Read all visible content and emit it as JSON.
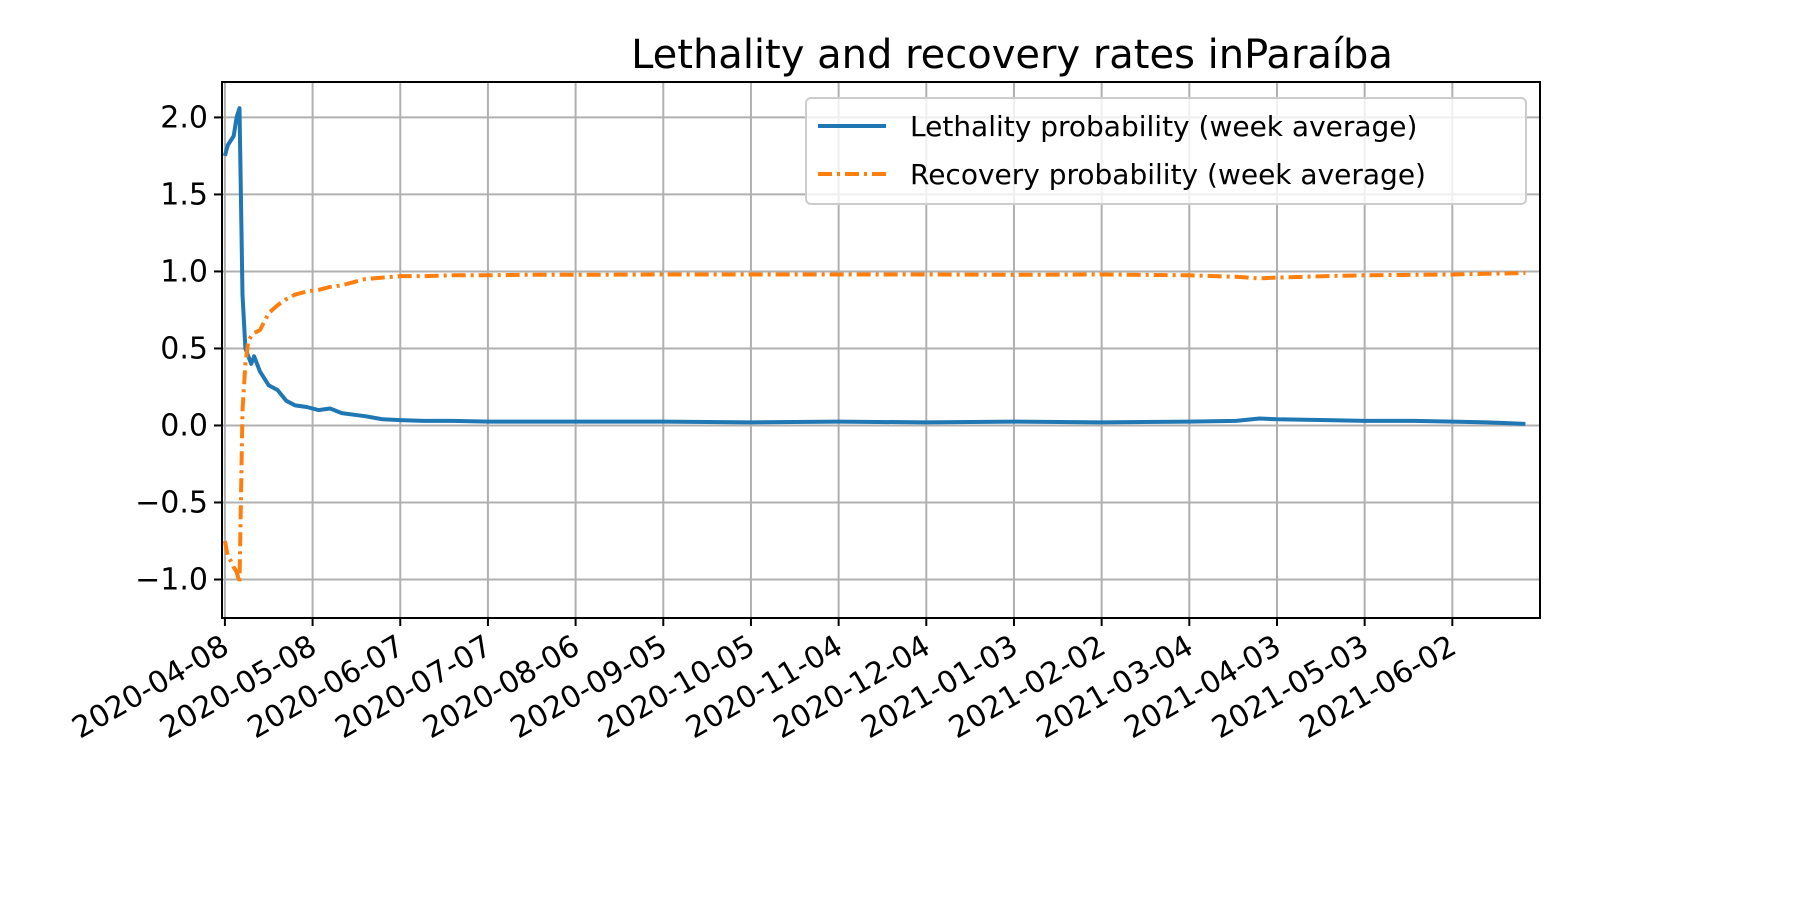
{
  "chart_data": {
    "type": "line",
    "title": "Lethality and recovery rates inParaíba",
    "xlabel": "",
    "ylabel": "",
    "ylim": [
      -1.25,
      2.23
    ],
    "xlim": [
      "2020-04-07",
      "2021-07-02"
    ],
    "grid": true,
    "legend_position": "top-right",
    "x_tick_labels": [
      "2020-04-08",
      "2020-05-08",
      "2020-06-07",
      "2020-07-07",
      "2020-08-06",
      "2020-09-05",
      "2020-10-05",
      "2020-11-04",
      "2020-12-04",
      "2021-01-03",
      "2021-02-02",
      "2021-03-04",
      "2021-04-03",
      "2021-05-03",
      "2021-06-02"
    ],
    "y_ticks": [
      -1.0,
      -0.5,
      0.0,
      0.5,
      1.0,
      1.5,
      2.0
    ],
    "y_tick_labels": [
      "−1.0",
      "−0.5",
      "0.0",
      "0.5",
      "1.0",
      "1.5",
      "2.0"
    ],
    "series": [
      {
        "name": "Lethality probability (week average)",
        "color": "#1f77b4",
        "style": "solid",
        "points": [
          [
            "2020-04-08",
            1.75
          ],
          [
            "2020-04-09",
            1.82
          ],
          [
            "2020-04-10",
            1.85
          ],
          [
            "2020-04-11",
            1.88
          ],
          [
            "2020-04-12",
            2.0
          ],
          [
            "2020-04-13",
            2.06
          ],
          [
            "2020-04-14",
            0.85
          ],
          [
            "2020-04-15",
            0.5
          ],
          [
            "2020-04-16",
            0.45
          ],
          [
            "2020-04-17",
            0.4
          ],
          [
            "2020-04-18",
            0.45
          ],
          [
            "2020-04-20",
            0.35
          ],
          [
            "2020-04-23",
            0.26
          ],
          [
            "2020-04-26",
            0.23
          ],
          [
            "2020-04-29",
            0.16
          ],
          [
            "2020-05-02",
            0.13
          ],
          [
            "2020-05-06",
            0.12
          ],
          [
            "2020-05-10",
            0.1
          ],
          [
            "2020-05-14",
            0.11
          ],
          [
            "2020-05-18",
            0.08
          ],
          [
            "2020-05-22",
            0.07
          ],
          [
            "2020-05-26",
            0.06
          ],
          [
            "2020-06-01",
            0.04
          ],
          [
            "2020-06-07",
            0.035
          ],
          [
            "2020-06-15",
            0.03
          ],
          [
            "2020-06-25",
            0.03
          ],
          [
            "2020-07-07",
            0.025
          ],
          [
            "2020-07-20",
            0.025
          ],
          [
            "2020-08-06",
            0.025
          ],
          [
            "2020-09-05",
            0.025
          ],
          [
            "2020-10-05",
            0.02
          ],
          [
            "2020-11-04",
            0.025
          ],
          [
            "2020-12-04",
            0.02
          ],
          [
            "2021-01-03",
            0.025
          ],
          [
            "2021-02-02",
            0.02
          ],
          [
            "2021-03-04",
            0.025
          ],
          [
            "2021-03-20",
            0.03
          ],
          [
            "2021-03-28",
            0.045
          ],
          [
            "2021-04-03",
            0.04
          ],
          [
            "2021-04-20",
            0.035
          ],
          [
            "2021-05-03",
            0.03
          ],
          [
            "2021-05-20",
            0.03
          ],
          [
            "2021-06-02",
            0.025
          ],
          [
            "2021-06-14",
            0.02
          ],
          [
            "2021-06-27",
            0.01
          ]
        ]
      },
      {
        "name": "Recovery probability (week average)",
        "color": "#ff7f0e",
        "style": "dashdot",
        "points": [
          [
            "2020-04-08",
            -0.75
          ],
          [
            "2020-04-09",
            -0.85
          ],
          [
            "2020-04-10",
            -0.88
          ],
          [
            "2020-04-11",
            -0.92
          ],
          [
            "2020-04-12",
            -0.95
          ],
          [
            "2020-04-13",
            -1.02
          ],
          [
            "2020-04-14",
            0.1
          ],
          [
            "2020-04-15",
            0.4
          ],
          [
            "2020-04-16",
            0.55
          ],
          [
            "2020-04-17",
            0.58
          ],
          [
            "2020-04-18",
            0.6
          ],
          [
            "2020-04-20",
            0.62
          ],
          [
            "2020-04-23",
            0.73
          ],
          [
            "2020-04-26",
            0.78
          ],
          [
            "2020-04-29",
            0.82
          ],
          [
            "2020-05-02",
            0.85
          ],
          [
            "2020-05-06",
            0.87
          ],
          [
            "2020-05-10",
            0.88
          ],
          [
            "2020-05-14",
            0.9
          ],
          [
            "2020-05-18",
            0.91
          ],
          [
            "2020-05-22",
            0.93
          ],
          [
            "2020-05-26",
            0.95
          ],
          [
            "2020-06-01",
            0.96
          ],
          [
            "2020-06-07",
            0.97
          ],
          [
            "2020-06-15",
            0.97
          ],
          [
            "2020-06-25",
            0.975
          ],
          [
            "2020-07-07",
            0.975
          ],
          [
            "2020-07-20",
            0.978
          ],
          [
            "2020-08-06",
            0.978
          ],
          [
            "2020-09-05",
            0.98
          ],
          [
            "2020-10-05",
            0.98
          ],
          [
            "2020-11-04",
            0.98
          ],
          [
            "2020-12-04",
            0.98
          ],
          [
            "2021-01-03",
            0.978
          ],
          [
            "2021-02-02",
            0.98
          ],
          [
            "2021-03-04",
            0.975
          ],
          [
            "2021-03-20",
            0.965
          ],
          [
            "2021-03-28",
            0.955
          ],
          [
            "2021-04-03",
            0.96
          ],
          [
            "2021-04-20",
            0.97
          ],
          [
            "2021-05-03",
            0.975
          ],
          [
            "2021-05-20",
            0.978
          ],
          [
            "2021-06-02",
            0.98
          ],
          [
            "2021-06-14",
            0.985
          ],
          [
            "2021-06-27",
            0.99
          ]
        ]
      }
    ]
  }
}
